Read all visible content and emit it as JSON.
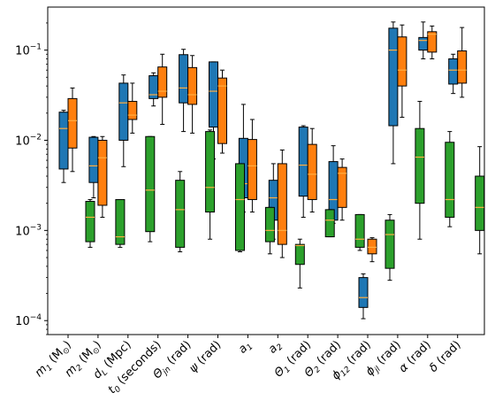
{
  "chart_data": {
    "type": "box",
    "title": "",
    "xlabel": "",
    "ylabel": "",
    "yscale": "log",
    "ylim": [
      7e-05,
      0.3
    ],
    "yticks": [
      {
        "value": 0.0001,
        "base": "10",
        "exp": "−4"
      },
      {
        "value": 0.001,
        "base": "10",
        "exp": "−3"
      },
      {
        "value": 0.01,
        "base": "10",
        "exp": "−2"
      },
      {
        "value": 0.1,
        "base": "10",
        "exp": "−1"
      }
    ],
    "grid": false,
    "legend": "none",
    "categories": [
      {
        "main": "m",
        "sub": "1",
        "unit": " (M",
        "unitsub": "⊙",
        "tail": ")"
      },
      {
        "main": "m",
        "sub": "2",
        "unit": " (M",
        "unitsub": "⊙",
        "tail": ")"
      },
      {
        "main": "d",
        "sub": "L",
        "unit": " (Mpc)",
        "unitsub": "",
        "tail": ""
      },
      {
        "main": "t",
        "sub": "0",
        "unit": " (seconds)",
        "unitsub": "",
        "tail": ""
      },
      {
        "main": "Θ",
        "sub": "jn",
        "unit": " (rad)",
        "unitsub": "",
        "tail": ""
      },
      {
        "main": "ψ",
        "sub": "",
        "unit": " (rad)",
        "unitsub": "",
        "tail": ""
      },
      {
        "main": "a",
        "sub": "1",
        "unit": "",
        "unitsub": "",
        "tail": ""
      },
      {
        "main": "a",
        "sub": "2",
        "unit": "",
        "unitsub": "",
        "tail": ""
      },
      {
        "main": "Θ",
        "sub": "1",
        "unit": " (rad)",
        "unitsub": "",
        "tail": ""
      },
      {
        "main": "Θ",
        "sub": "2",
        "unit": " (rad)",
        "unitsub": "",
        "tail": ""
      },
      {
        "main": "ϕ",
        "sub": "12",
        "unit": " (rad)",
        "unitsub": "",
        "tail": ""
      },
      {
        "main": "ϕ",
        "sub": "jl",
        "unit": " (rad)",
        "unitsub": "",
        "tail": ""
      },
      {
        "main": "α",
        "sub": "",
        "unit": " (rad)",
        "unitsub": "",
        "tail": ""
      },
      {
        "main": "δ",
        "sub": "",
        "unit": " (rad)",
        "unitsub": "",
        "tail": ""
      }
    ],
    "series": [
      {
        "color": "#1f77b4",
        "boxes": [
          {
            "whislo": 0.0034,
            "q1": 0.0048,
            "med": 0.0135,
            "q3": 0.0205,
            "whishi": 0.0215
          },
          {
            "whislo": 0.0023,
            "q1": 0.0034,
            "med": 0.0052,
            "q3": 0.0108,
            "whishi": 0.011
          },
          {
            "whislo": 0.0051,
            "q1": 0.01,
            "med": 0.026,
            "q3": 0.043,
            "whishi": 0.053
          },
          {
            "whislo": 0.024,
            "q1": 0.029,
            "med": 0.032,
            "q3": 0.052,
            "whishi": 0.056
          },
          {
            "whislo": 0.0125,
            "q1": 0.026,
            "med": 0.038,
            "q3": 0.089,
            "whishi": 0.102
          },
          {
            "whislo": 0.0062,
            "q1": 0.014,
            "med": 0.035,
            "q3": 0.074,
            "whishi": 0.074
          },
          {
            "whislo": 0.0016,
            "q1": 0.0023,
            "med": 0.0033,
            "q3": 0.0105,
            "whishi": 0.025
          },
          {
            "whislo": 0.0008,
            "q1": 0.0013,
            "med": 0.0023,
            "q3": 0.0036,
            "whishi": 0.0055
          },
          {
            "whislo": 0.0014,
            "q1": 0.0024,
            "med": 0.0053,
            "q3": 0.014,
            "whishi": 0.0145
          },
          {
            "whislo": 0.0012,
            "q1": 0.0013,
            "med": 0.0022,
            "q3": 0.0058,
            "whishi": 0.0087
          },
          {
            "whislo": 0.000105,
            "q1": 0.00014,
            "med": 0.00018,
            "q3": 0.0003,
            "whishi": 0.00033
          },
          {
            "whislo": 0.0055,
            "q1": 0.0145,
            "med": 0.1,
            "q3": 0.175,
            "whishi": 0.205
          },
          {
            "whislo": 0.08,
            "q1": 0.1,
            "med": 0.128,
            "q3": 0.138,
            "whishi": 0.205
          },
          {
            "whislo": 0.033,
            "q1": 0.042,
            "med": 0.06,
            "q3": 0.08,
            "whishi": 0.09
          }
        ]
      },
      {
        "color": "#ff7f0e",
        "boxes": [
          {
            "whislo": 0.0045,
            "q1": 0.0082,
            "med": 0.0165,
            "q3": 0.029,
            "whishi": 0.038
          },
          {
            "whislo": 0.0014,
            "q1": 0.0019,
            "med": 0.0064,
            "q3": 0.01,
            "whishi": 0.011
          },
          {
            "whislo": 0.012,
            "q1": 0.017,
            "med": 0.019,
            "q3": 0.027,
            "whishi": 0.043
          },
          {
            "whislo": 0.015,
            "q1": 0.03,
            "med": 0.035,
            "q3": 0.065,
            "whishi": 0.09
          },
          {
            "whislo": 0.012,
            "q1": 0.025,
            "med": 0.032,
            "q3": 0.064,
            "whishi": 0.087
          },
          {
            "whislo": 0.0072,
            "q1": 0.0092,
            "med": 0.04,
            "q3": 0.049,
            "whishi": 0.06
          },
          {
            "whislo": 0.0016,
            "q1": 0.0022,
            "med": 0.0052,
            "q3": 0.0102,
            "whishi": 0.017
          },
          {
            "whislo": 0.0005,
            "q1": 0.0007,
            "med": 0.001,
            "q3": 0.0055,
            "whishi": 0.0078
          },
          {
            "whislo": 0.0016,
            "q1": 0.0022,
            "med": 0.0042,
            "q3": 0.009,
            "whishi": 0.0135
          },
          {
            "whislo": 0.0013,
            "q1": 0.0018,
            "med": 0.0043,
            "q3": 0.005,
            "whishi": 0.0062
          },
          {
            "whislo": 0.00045,
            "q1": 0.00055,
            "med": 0.00065,
            "q3": 0.0008,
            "whishi": 0.00083
          },
          {
            "whislo": 0.018,
            "q1": 0.04,
            "med": 0.06,
            "q3": 0.14,
            "whishi": 0.19
          },
          {
            "whislo": 0.08,
            "q1": 0.095,
            "med": 0.15,
            "q3": 0.16,
            "whishi": 0.185
          },
          {
            "whislo": 0.03,
            "q1": 0.043,
            "med": 0.06,
            "q3": 0.098,
            "whishi": 0.178
          }
        ]
      },
      {
        "color": "#2ca02c",
        "boxes": [
          {
            "whislo": 0.00065,
            "q1": 0.00075,
            "med": 0.0014,
            "q3": 0.0021,
            "whishi": 0.0022
          },
          {
            "whislo": 0.00065,
            "q1": 0.0007,
            "med": 0.00085,
            "q3": 0.0022,
            "whishi": 0.0022
          },
          {
            "whislo": 0.00075,
            "q1": 0.00097,
            "med": 0.0028,
            "q3": 0.011,
            "whishi": 0.011
          },
          {
            "whislo": 0.00058,
            "q1": 0.00065,
            "med": 0.0017,
            "q3": 0.0036,
            "whishi": 0.0045
          },
          {
            "whislo": 0.0008,
            "q1": 0.0016,
            "med": 0.003,
            "q3": 0.0125,
            "whishi": 0.013
          },
          {
            "whislo": 0.00058,
            "q1": 0.0006,
            "med": 0.0022,
            "q3": 0.0055,
            "whishi": 0.0055
          },
          {
            "whislo": 0.00055,
            "q1": 0.00075,
            "med": 0.001,
            "q3": 0.0018,
            "whishi": 0.0018
          },
          {
            "whislo": 0.00023,
            "q1": 0.00042,
            "med": 0.00068,
            "q3": 0.0007,
            "whishi": 0.0008
          },
          {
            "whislo": 0.00085,
            "q1": 0.00085,
            "med": 0.0013,
            "q3": 0.0017,
            "whishi": 0.0017
          },
          {
            "whislo": 0.0006,
            "q1": 0.00065,
            "med": 0.0008,
            "q3": 0.0015,
            "whishi": 0.0015
          },
          {
            "whislo": 0.00028,
            "q1": 0.00038,
            "med": 0.0009,
            "q3": 0.0013,
            "whishi": 0.0015
          },
          {
            "whislo": 0.0008,
            "q1": 0.002,
            "med": 0.0065,
            "q3": 0.0135,
            "whishi": 0.027
          },
          {
            "whislo": 0.0011,
            "q1": 0.0014,
            "med": 0.0022,
            "q3": 0.0095,
            "whishi": 0.0125
          },
          {
            "whislo": 0.00055,
            "q1": 0.001,
            "med": 0.0018,
            "q3": 0.004,
            "whishi": 0.0085
          }
        ]
      }
    ]
  }
}
